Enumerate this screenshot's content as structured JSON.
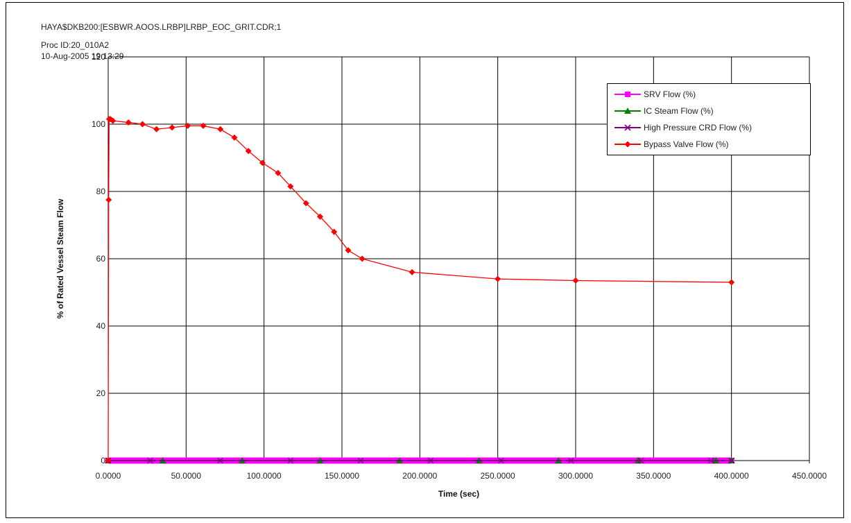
{
  "header": {
    "line1": "HAYA$DKB200:[ESBWR.AOOS.LRBP]LRBP_EOC_GRIT.CDR;1",
    "line2": "Proc ID:20_010A2",
    "line3": "10-Aug-2005 19:13:29"
  },
  "chart_data": {
    "type": "line",
    "title": "",
    "xlabel": "Time (sec)",
    "ylabel": "% of Rated Vessel Steam Flow",
    "xlim": [
      0,
      450
    ],
    "ylim": [
      0,
      120
    ],
    "x_tick_labels": [
      "0.0000",
      "50.0000",
      "100.0000",
      "150.0000",
      "200.0000",
      "250.0000",
      "300.0000",
      "350.0000",
      "400.0000",
      "450.0000"
    ],
    "y_tick_labels": [
      "0",
      "20",
      "40",
      "60",
      "80",
      "100",
      "120"
    ],
    "grid": true,
    "legend_position": "top-right",
    "series": [
      {
        "name": "SRV Flow (%)",
        "color": "#ff00ff",
        "marker": "square",
        "points": [
          [
            0,
            0
          ],
          [
            0.5,
            0
          ],
          [
            1,
            0
          ],
          [
            2,
            0
          ],
          [
            400,
            0
          ]
        ]
      },
      {
        "name": "IC Steam Flow (%)",
        "color": "#008000",
        "marker": "triangle",
        "points": [
          [
            0,
            0
          ],
          [
            35,
            0
          ],
          [
            86,
            0
          ],
          [
            136,
            0
          ],
          [
            187,
            0
          ],
          [
            238,
            0
          ],
          [
            289,
            0
          ],
          [
            340,
            0
          ],
          [
            390,
            0
          ],
          [
            400,
            0
          ]
        ]
      },
      {
        "name": "High Pressure CRD Flow (%)",
        "color": "#800080",
        "marker": "x",
        "points": [
          [
            0,
            0
          ],
          [
            27,
            0
          ],
          [
            72,
            0
          ],
          [
            117,
            0
          ],
          [
            162,
            0
          ],
          [
            207,
            0
          ],
          [
            252,
            0
          ],
          [
            297,
            0
          ],
          [
            342,
            0
          ],
          [
            387,
            0
          ],
          [
            400,
            0
          ]
        ]
      },
      {
        "name": "Bypass Valve Flow (%)",
        "color": "#ff0000",
        "marker": "diamond",
        "points": [
          [
            0,
            0
          ],
          [
            0.3,
            77.5
          ],
          [
            0.6,
            101.5
          ],
          [
            1.5,
            101.5
          ],
          [
            3,
            101
          ],
          [
            13,
            100.5
          ],
          [
            22,
            100
          ],
          [
            31,
            98.5
          ],
          [
            41,
            99
          ],
          [
            51,
            99.5
          ],
          [
            61,
            99.5
          ],
          [
            72,
            98.5
          ],
          [
            81,
            96
          ],
          [
            90,
            92
          ],
          [
            99,
            88.5
          ],
          [
            109,
            85.5
          ],
          [
            117,
            81.5
          ],
          [
            127,
            76.5
          ],
          [
            136,
            72.5
          ],
          [
            145,
            68
          ],
          [
            154,
            62.5
          ],
          [
            163,
            60
          ],
          [
            195,
            56
          ],
          [
            250,
            54
          ],
          [
            300,
            53.5
          ],
          [
            400,
            53
          ]
        ]
      }
    ]
  }
}
